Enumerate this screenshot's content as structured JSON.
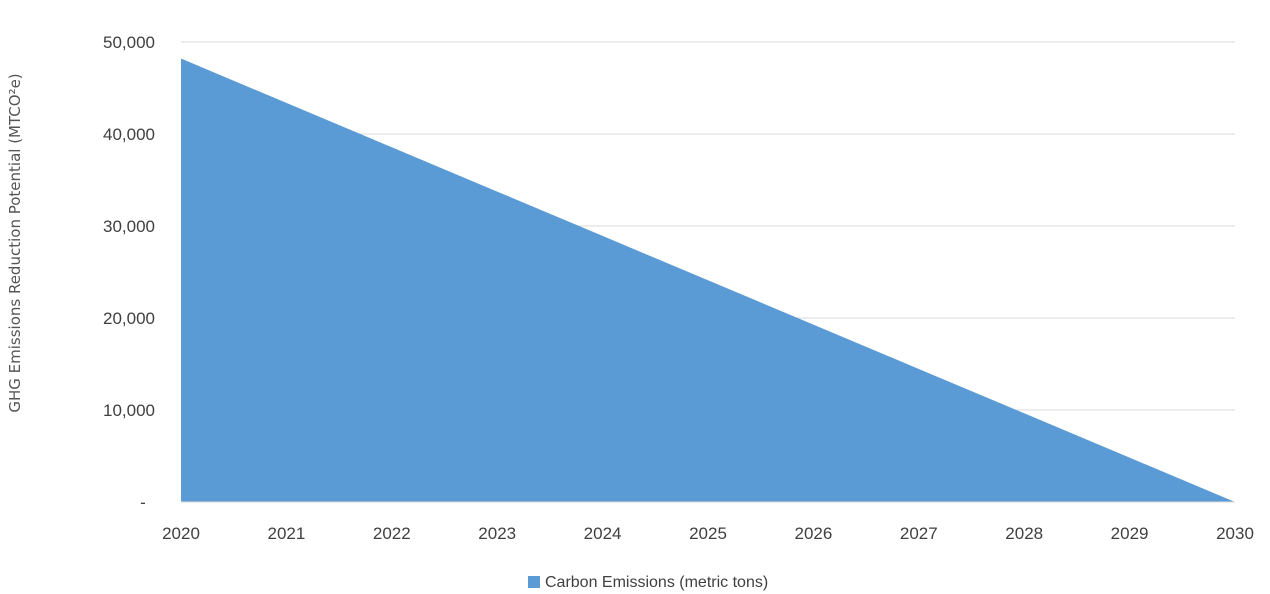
{
  "chart_data": {
    "type": "area",
    "x": [
      2020,
      2021,
      2022,
      2023,
      2024,
      2025,
      2026,
      2027,
      2028,
      2029,
      2030
    ],
    "series": [
      {
        "name": "Carbon Emissions (metric tons)",
        "values": [
          48200,
          43380,
          38560,
          33740,
          28920,
          24100,
          19280,
          14460,
          9640,
          4820,
          0
        ],
        "color": "#5b9bd5"
      }
    ],
    "x_tick_labels": [
      "2020",
      "2021",
      "2022",
      "2023",
      "2024",
      "2025",
      "2026",
      "2027",
      "2028",
      "2029",
      "2030"
    ],
    "y_ticks": [
      {
        "value": 0,
        "label": "-"
      },
      {
        "value": 10000,
        "label": "10,000"
      },
      {
        "value": 20000,
        "label": "20,000"
      },
      {
        "value": 30000,
        "label": "30,000"
      },
      {
        "value": 40000,
        "label": "40,000"
      },
      {
        "value": 50000,
        "label": "50,000"
      }
    ],
    "ylabel": "GHG Emissions Reduction Potential (MTCO²e)",
    "xlabel": "",
    "xlim": [
      2020,
      2030
    ],
    "ylim": [
      0,
      50000
    ],
    "grid": "horizontal",
    "gridline_color": "#d9d9d9",
    "legend_position": "bottom-center"
  }
}
